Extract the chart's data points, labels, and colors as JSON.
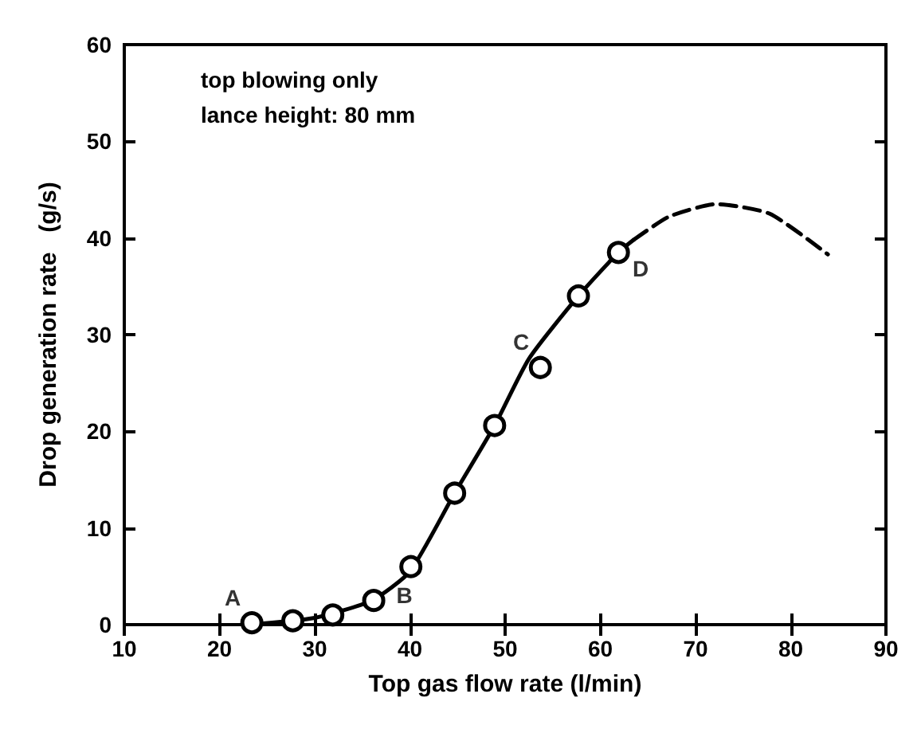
{
  "chart_data": {
    "type": "scatter",
    "xlabel": "Top gas flow rate (l/min)",
    "ylabel": "Drop generation rate   (g/s)",
    "xlim": [
      10,
      90
    ],
    "xticks": [
      10,
      20,
      30,
      40,
      50,
      60,
      70,
      80,
      90
    ],
    "ylim": [
      0,
      60
    ],
    "yticks": [
      0,
      10,
      20,
      30,
      40,
      50,
      60
    ],
    "grid": false,
    "marker": "circle",
    "series": [
      {
        "type": "line",
        "color": "#000000",
        "line_style": "solid",
        "marker": "none",
        "x": [
          23,
          30,
          36,
          40,
          44.7,
          48.9,
          52.5,
          57.7,
          61.9,
          63.5
        ],
        "values": [
          0,
          0.7,
          2.5,
          5.5,
          13.6,
          20.6,
          27.5,
          34,
          38.5,
          39.8
        ]
      },
      {
        "type": "line",
        "color": "#000000",
        "line_style": "dashed",
        "marker": "none",
        "x": [
          63.5,
          67.2,
          72.2,
          77.8,
          83.9
        ],
        "values": [
          39.8,
          42.2,
          43.5,
          42.5,
          38.3
        ]
      },
      {
        "color": "#000000",
        "x": [
          23.4,
          27.7,
          31.9,
          36.2,
          40.1,
          44.7,
          48.9,
          53.7,
          57.7,
          61.9
        ],
        "values": [
          0.2,
          0.4,
          1.0,
          2.5,
          6.0,
          13.6,
          20.6,
          26.6,
          34.0,
          38.5
        ]
      }
    ],
    "annotations": [
      "top blowing only",
      "lance height: 80 mm",
      {
        "text": "A",
        "x": 23.4,
        "y": 0.2
      },
      {
        "text": "B",
        "x": 40.1,
        "y": 6.0
      },
      {
        "text": "C",
        "x": 53.7,
        "y": 26.6
      },
      {
        "text": "D",
        "x": 61.9,
        "y": 38.5
      }
    ]
  }
}
